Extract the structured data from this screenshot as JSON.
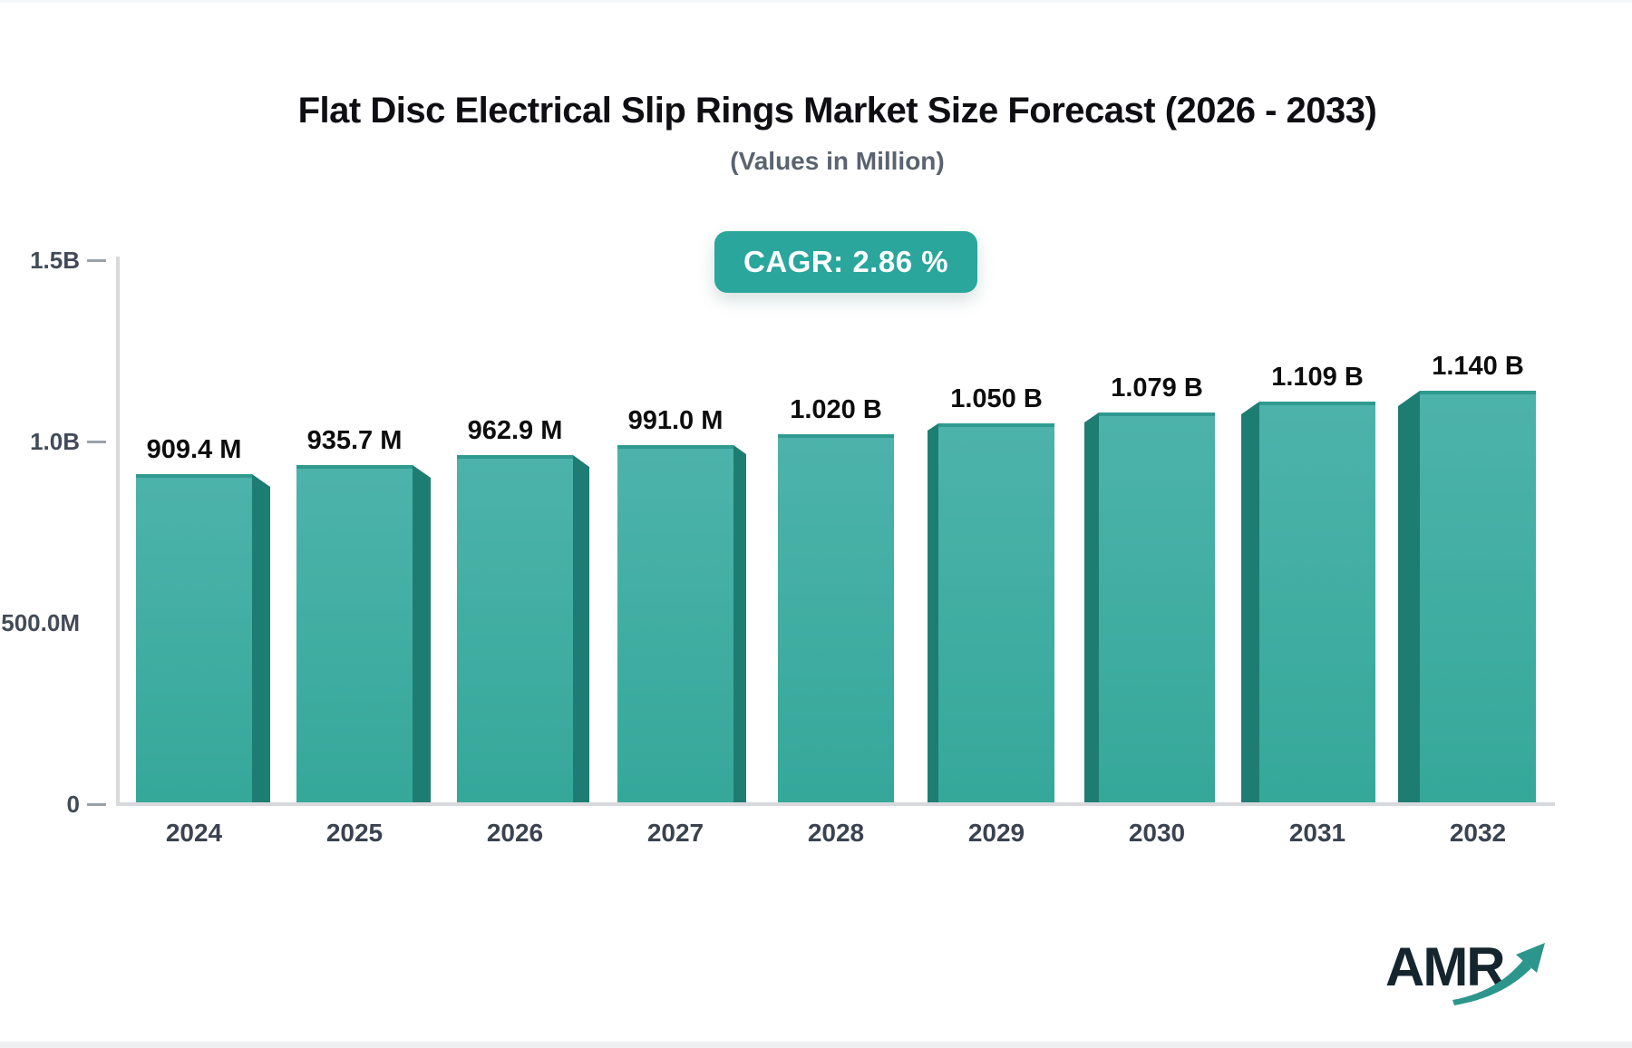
{
  "header": {
    "title": "Flat Disc Electrical Slip Rings Market Size Forecast (2026 - 2033)",
    "subtitle": "(Values in Million)"
  },
  "badge": {
    "label": "CAGR: 2.86 %"
  },
  "chart_data": {
    "type": "bar",
    "title": "Flat Disc Electrical Slip Rings Market Size Forecast (2026 - 2033)",
    "subtitle": "(Values in Million)",
    "cagr_percent": 2.86,
    "categories": [
      "2024",
      "2025",
      "2026",
      "2027",
      "2028",
      "2029",
      "2030",
      "2031",
      "2032"
    ],
    "values_millions": [
      909.4,
      935.7,
      962.9,
      991.0,
      1020,
      1050,
      1079,
      1109,
      1140
    ],
    "bar_labels": [
      "909.4 M",
      "935.7 M",
      "962.9 M",
      "991.0 M",
      "1.020 B",
      "1.050 B",
      "1.079 B",
      "1.109 B",
      "1.140 B"
    ],
    "y_axis": {
      "range_millions": [
        0,
        1500
      ],
      "ticks": [
        {
          "label": "1.5B",
          "value": 1500,
          "dash": true
        },
        {
          "label": "1.0B",
          "value": 1000,
          "dash": true
        },
        {
          "label": "500.0M",
          "value": 500,
          "dash": false
        },
        {
          "label": "0",
          "value": 0,
          "dash": true
        }
      ]
    },
    "legend": null,
    "grid": false,
    "colors": {
      "bar_front_top": "#4db3aa",
      "bar_front_bottom": "#35a89a",
      "bar_top_edge": "#2f9a8f",
      "bar_side": "#1e7d72",
      "axis": "#d7d9dd",
      "badge_background": "#2aa69c",
      "badge_text": "#ffffff",
      "value_label": "#0d0d0d",
      "tick_label": "#424b58",
      "year_label": "#3a4350"
    }
  },
  "logo": {
    "text": "AMR",
    "text_color": "#15252e",
    "arrow_color": "#2d968c"
  }
}
